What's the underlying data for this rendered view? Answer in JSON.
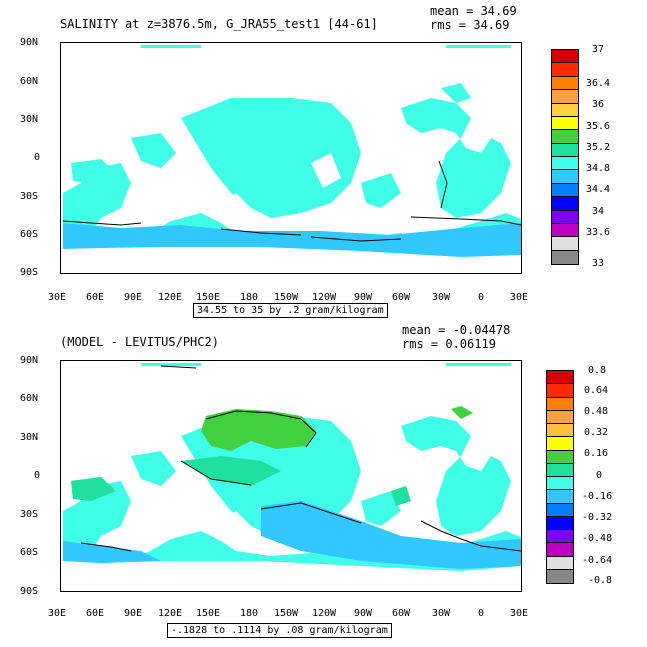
{
  "panel1": {
    "title": "SALINITY at z=3876.5m, G_JRA55_test1 [44-61]",
    "mean_text": "mean = 34.69",
    "rms_text": "rms = 34.69",
    "contour_info": "34.55 to 35 by .2 gram/kilogram",
    "colorbar_labels": [
      "37",
      "36.4",
      "36",
      "35.6",
      "35.2",
      "34.8",
      "34.4",
      "34",
      "33.6",
      "33"
    ],
    "colors": [
      "#d40000",
      "#ff2a00",
      "#ff8000",
      "#ffa040",
      "#ffd040",
      "#ffff00",
      "#40d040",
      "#20e0a0",
      "#40ffe8",
      "#30c8ff",
      "#0080ff",
      "#0000ff",
      "#8000ff",
      "#c000c0",
      "#e0e0e0",
      "#888888"
    ]
  },
  "panel2": {
    "title": "(MODEL - LEVITUS/PHC2)",
    "mean_text": "mean = -0.04478",
    "rms_text": "rms = 0.06119",
    "contour_info": "-.1828 to .1114 by .08 gram/kilogram",
    "colorbar_labels": [
      "0.8",
      "0.64",
      "0.48",
      "0.32",
      "0.16",
      "0",
      "-0.16",
      "-0.32",
      "-0.48",
      "-0.64",
      "-0.8"
    ],
    "colors": [
      "#d40000",
      "#ff2a00",
      "#ff8000",
      "#ffa040",
      "#ffc040",
      "#ffff00",
      "#40d040",
      "#20e0a0",
      "#40ffe8",
      "#30c8ff",
      "#0080ff",
      "#0000ff",
      "#8000ff",
      "#c000c0",
      "#e0e0e0",
      "#888888"
    ]
  },
  "lat_labels": [
    "90N",
    "60N",
    "30N",
    "0",
    "30S",
    "60S",
    "90S"
  ],
  "lon_labels": [
    "30E",
    "60E",
    "90E",
    "120E",
    "150E",
    "180",
    "150W",
    "120W",
    "90W",
    "60W",
    "30W",
    "0",
    "30E"
  ]
}
